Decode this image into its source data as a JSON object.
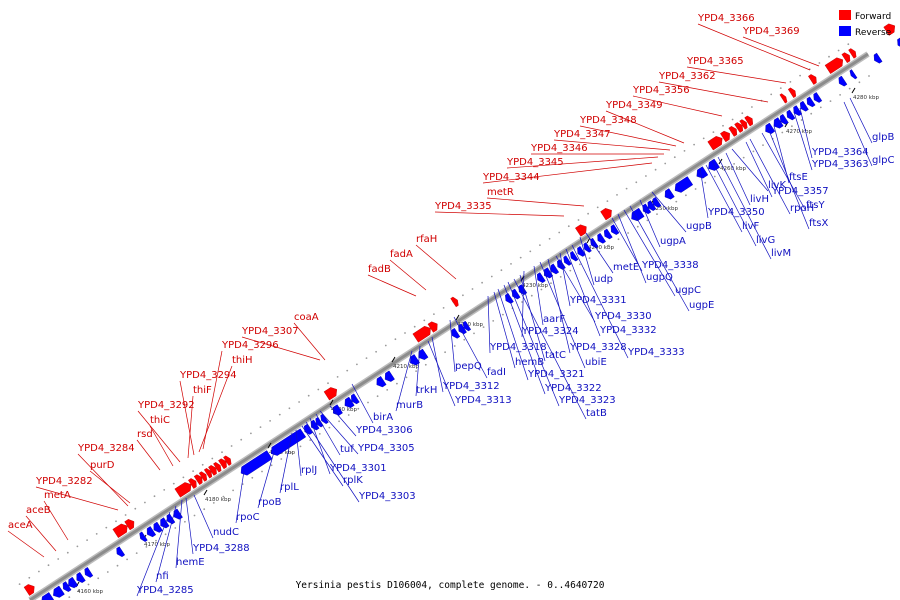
{
  "caption": "Yersinia pestis D106004, complete genome. - 0..4640720",
  "legend": {
    "forward": "Forward",
    "reverse": "Reverse"
  },
  "colors": {
    "forward": "#ff0000",
    "reverse": "#0000ff",
    "backbone": "#8c8c8c"
  },
  "ticks": [
    "4160 kbp",
    "4170 kbp",
    "4180 kbp",
    "4190 kbp",
    "4200 kbp",
    "4210 kbp",
    "4220 kbp",
    "4230 kbp",
    "4240 kbp",
    "4250 kbp",
    "4260 kbp",
    "4270 kbp",
    "4280 kbp"
  ],
  "forward_labels": [
    "aceA",
    "aceB",
    "metA",
    "YPD4_3282",
    "purD",
    "YPD4_3284",
    "rsd",
    "thiC",
    "YPD4_3292",
    "thiF",
    "YPD4_3294",
    "thiH",
    "YPD4_3296",
    "YPD4_3307",
    "coaA",
    "fadB",
    "fadA",
    "rfaH",
    "YPD4_3335",
    "metR",
    "YPD4_3344",
    "YPD4_3345",
    "YPD4_3346",
    "YPD4_3347",
    "YPD4_3348",
    "YPD4_3349",
    "YPD4_3356",
    "YPD4_3362",
    "YPD4_3365",
    "YPD4_3366",
    "YPD4_3369"
  ],
  "reverse_labels": [
    "YPD4_3285",
    "nfi",
    "hemE",
    "YPD4_3288",
    "nudC",
    "rpoC",
    "rpoB",
    "rplL",
    "rplJ",
    "rplK",
    "YPD4_3303",
    "YPD4_3301",
    "tuf",
    "YPD4_3305",
    "YPD4_3306",
    "birA",
    "murB",
    "trkH",
    "YPD4_3313",
    "YPD4_3312",
    "pepQ",
    "fadI",
    "YPD4_3318",
    "hemB",
    "YPD4_3321",
    "YPD4_3322",
    "YPD4_3323",
    "tatB",
    "tatC",
    "YPD4_3324",
    "aarF",
    "ubiE",
    "YPD4_3328",
    "YPD4_3330",
    "YPD4_3331",
    "YPD4_3332",
    "YPD4_3333",
    "udp",
    "metE",
    "YPD4_3338",
    "ugpQ",
    "ugpC",
    "ugpE",
    "ugpA",
    "ugpB",
    "YPD4_3350",
    "livF",
    "livG",
    "livM",
    "livH",
    "livK",
    "YPD4_3357",
    "rpoH",
    "ftsY",
    "ftsX",
    "ftsE",
    "YPD4_3363",
    "YPD4_3364",
    "glpC",
    "glpB"
  ]
}
